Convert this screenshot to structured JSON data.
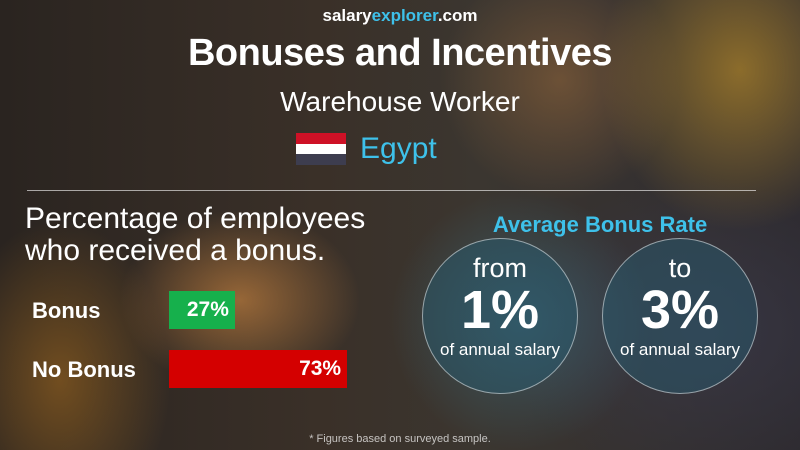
{
  "site": {
    "part1": "salary",
    "part2": "explorer",
    "part3": ".com"
  },
  "title": "Bonuses and Incentives",
  "job": "Warehouse Worker",
  "country": "Egypt",
  "flag_colors": [
    "#ce1126",
    "#ffffff",
    "#3d3d4f"
  ],
  "pct_title_line1": "Percentage of employees",
  "pct_title_line2": "who received a bonus.",
  "avg_title": "Average Bonus Rate",
  "from": {
    "word": "from",
    "value": "1%",
    "sub": "of annual salary"
  },
  "to": {
    "word": "to",
    "value": "3%",
    "sub": "of annual salary"
  },
  "footnote": "* Figures based on surveyed sample.",
  "chart_data": {
    "type": "bar",
    "orientation": "horizontal",
    "categories": [
      "Bonus",
      "No Bonus"
    ],
    "values": [
      27,
      73
    ],
    "labels": [
      "27%",
      "73%"
    ],
    "colors": [
      "#16b04c",
      "#d40000"
    ],
    "xlim": [
      0,
      100
    ]
  }
}
